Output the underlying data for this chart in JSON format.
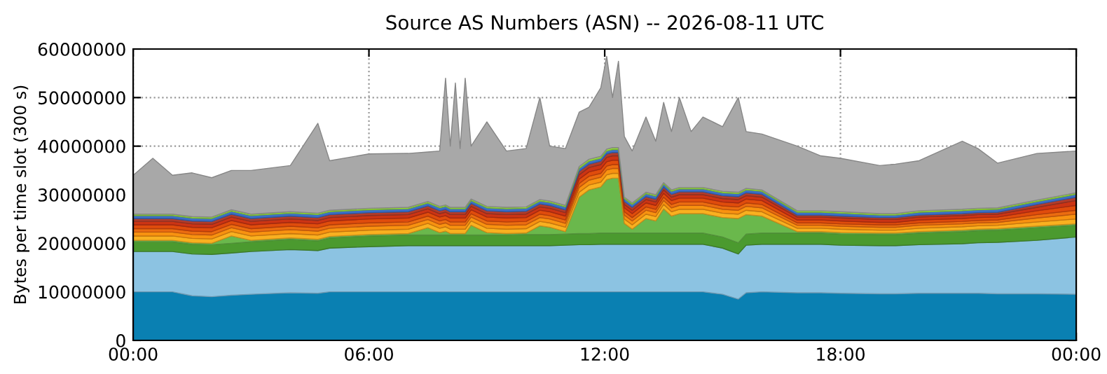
{
  "chart_data": {
    "type": "area",
    "stacked": true,
    "title": "Source AS Numbers (ASN) -- 2026-08-11 UTC",
    "ylabel": "Bytes per time slot (300 s)",
    "x": [
      0,
      0.5,
      1,
      1.5,
      2,
      2.5,
      3,
      4,
      4.7,
      5,
      6,
      7,
      7.5,
      7.8,
      7.95,
      8.07,
      8.2,
      8.32,
      8.45,
      8.6,
      9.0,
      9.5,
      10,
      10.35,
      10.6,
      11,
      11.35,
      11.6,
      11.9,
      12.05,
      12.2,
      12.35,
      12.5,
      12.7,
      13.05,
      13.3,
      13.5,
      13.7,
      13.9,
      14.2,
      14.5,
      15,
      15.4,
      15.6,
      16,
      16.9,
      17.5,
      18,
      19,
      19.4,
      20,
      21.1,
      21.5,
      22,
      23,
      24
    ],
    "xlim": [
      0,
      24
    ],
    "xticks": [
      {
        "value": 0,
        "label": "00:00"
      },
      {
        "value": 6,
        "label": "06:00"
      },
      {
        "value": 12,
        "label": "12:00"
      },
      {
        "value": 18,
        "label": "18:00"
      },
      {
        "value": 24,
        "label": "00:00"
      }
    ],
    "ylim": [
      0,
      60000000
    ],
    "yticks": [
      0,
      10000000,
      20000000,
      30000000,
      40000000,
      50000000,
      60000000
    ],
    "grid": true,
    "series": [
      {
        "color": "#0a80b2",
        "values": [
          10000000,
          10000000,
          10000000,
          9200000,
          9000000,
          9300000,
          9500000,
          9800000,
          9700000,
          10000000,
          10000000,
          10000000,
          10000000,
          10000000,
          10000000,
          10000000,
          10000000,
          10000000,
          10000000,
          10000000,
          10000000,
          10000000,
          10000000,
          10000000,
          10000000,
          10000000,
          10000000,
          10000000,
          10000000,
          10000000,
          10000000,
          10000000,
          10000000,
          10000000,
          10000000,
          10000000,
          10000000,
          10000000,
          10000000,
          10000000,
          10000000,
          9500000,
          8500000,
          9800000,
          10000000,
          9800000,
          9800000,
          9700000,
          9600000,
          9600000,
          9700000,
          9700000,
          9700000,
          9600000,
          9600000,
          9500000
        ]
      },
      {
        "color": "#8cc3e2",
        "values": [
          8300000,
          8300000,
          8300000,
          8600000,
          8700000,
          8700000,
          8800000,
          8900000,
          8800000,
          9000000,
          9300000,
          9500000,
          9500000,
          9500000,
          9500000,
          9500000,
          9500000,
          9500000,
          9500000,
          9500000,
          9500000,
          9500000,
          9500000,
          9500000,
          9500000,
          9600000,
          9700000,
          9700000,
          9800000,
          9800000,
          9800000,
          9800000,
          9800000,
          9800000,
          9800000,
          9800000,
          9800000,
          9800000,
          9800000,
          9800000,
          9800000,
          9500000,
          9300000,
          9800000,
          9800000,
          10000000,
          10000000,
          9900000,
          9900000,
          9900000,
          10000000,
          10200000,
          10400000,
          10600000,
          11000000,
          11800000
        ]
      },
      {
        "color": "#4b9a2f",
        "values": [
          2000000,
          2000000,
          2000000,
          2000000,
          2000000,
          2000000,
          2000000,
          2100000,
          2000000,
          2100000,
          2200000,
          2200000,
          2200000,
          2200000,
          2200000,
          2200000,
          2200000,
          2200000,
          2200000,
          2200000,
          2200000,
          2200000,
          2300000,
          2300000,
          2300000,
          2300000,
          2300000,
          2300000,
          2300000,
          2300000,
          2300000,
          2300000,
          2300000,
          2300000,
          2300000,
          2300000,
          2300000,
          2300000,
          2300000,
          2300000,
          2300000,
          2300000,
          2300000,
          2300000,
          2300000,
          2300000,
          2300000,
          2300000,
          2300000,
          2300000,
          2400000,
          2500000,
          2500000,
          2500000,
          2600000,
          2400000
        ]
      },
      {
        "color": "#6ab84c",
        "values": [
          300000,
          300000,
          300000,
          300000,
          300000,
          1500000,
          300000,
          300000,
          300000,
          300000,
          300000,
          300000,
          1500000,
          500000,
          800000,
          300000,
          300000,
          300000,
          300000,
          2000000,
          500000,
          300000,
          300000,
          1800000,
          1500000,
          500000,
          7500000,
          9000000,
          9500000,
          11000000,
          11300000,
          11300000,
          2000000,
          800000,
          3000000,
          2500000,
          5000000,
          3500000,
          4000000,
          4000000,
          4000000,
          4000000,
          5000000,
          4000000,
          3500000,
          300000,
          300000,
          300000,
          300000,
          300000,
          300000,
          300000,
          300000,
          300000,
          300000,
          300000
        ]
      },
      {
        "color": "#f9b020",
        "values": [
          900000,
          900000,
          900000,
          900000,
          900000,
          900000,
          900000,
          900000,
          900000,
          900000,
          900000,
          900000,
          900000,
          900000,
          900000,
          900000,
          900000,
          900000,
          900000,
          900000,
          900000,
          900000,
          900000,
          900000,
          900000,
          900000,
          1000000,
          1000000,
          1000000,
          1000000,
          1000000,
          1000000,
          900000,
          900000,
          900000,
          900000,
          900000,
          900000,
          900000,
          900000,
          900000,
          900000,
          900000,
          900000,
          900000,
          700000,
          700000,
          700000,
          600000,
          600000,
          700000,
          700000,
          700000,
          700000,
          900000,
          1000000
        ]
      },
      {
        "color": "#f89210",
        "values": [
          800000,
          800000,
          800000,
          800000,
          800000,
          800000,
          800000,
          800000,
          800000,
          800000,
          800000,
          800000,
          800000,
          800000,
          800000,
          800000,
          800000,
          800000,
          800000,
          800000,
          800000,
          800000,
          800000,
          800000,
          800000,
          800000,
          1000000,
          1000000,
          1000000,
          1000000,
          1000000,
          1000000,
          800000,
          800000,
          800000,
          800000,
          800000,
          800000,
          800000,
          800000,
          800000,
          800000,
          800000,
          800000,
          800000,
          600000,
          600000,
          600000,
          600000,
          600000,
          600000,
          600000,
          600000,
          600000,
          800000,
          1000000
        ]
      },
      {
        "color": "#ec6c10",
        "values": [
          700000,
          700000,
          700000,
          700000,
          700000,
          700000,
          700000,
          700000,
          700000,
          700000,
          700000,
          700000,
          700000,
          700000,
          700000,
          700000,
          700000,
          700000,
          700000,
          700000,
          700000,
          700000,
          700000,
          700000,
          700000,
          700000,
          800000,
          800000,
          800000,
          800000,
          800000,
          800000,
          700000,
          700000,
          700000,
          700000,
          700000,
          700000,
          700000,
          700000,
          700000,
          700000,
          700000,
          700000,
          700000,
          500000,
          500000,
          500000,
          500000,
          500000,
          500000,
          500000,
          500000,
          500000,
          700000,
          800000
        ]
      },
      {
        "color": "#e04c0c",
        "values": [
          800000,
          800000,
          800000,
          800000,
          800000,
          800000,
          800000,
          800000,
          800000,
          800000,
          800000,
          800000,
          800000,
          800000,
          800000,
          800000,
          800000,
          800000,
          800000,
          800000,
          800000,
          800000,
          800000,
          800000,
          800000,
          800000,
          900000,
          900000,
          900000,
          900000,
          900000,
          900000,
          800000,
          800000,
          800000,
          800000,
          800000,
          800000,
          800000,
          800000,
          800000,
          800000,
          800000,
          800000,
          800000,
          600000,
          600000,
          600000,
          500000,
          500000,
          600000,
          600000,
          600000,
          600000,
          800000,
          1000000
        ]
      },
      {
        "color": "#cc3414",
        "values": [
          700000,
          700000,
          700000,
          700000,
          700000,
          700000,
          700000,
          700000,
          700000,
          700000,
          700000,
          700000,
          700000,
          700000,
          700000,
          700000,
          700000,
          700000,
          700000,
          700000,
          700000,
          700000,
          700000,
          700000,
          700000,
          700000,
          900000,
          900000,
          900000,
          900000,
          900000,
          900000,
          700000,
          700000,
          700000,
          700000,
          700000,
          700000,
          700000,
          700000,
          700000,
          700000,
          700000,
          700000,
          700000,
          600000,
          600000,
          600000,
          600000,
          600000,
          600000,
          600000,
          600000,
          600000,
          700000,
          1000000
        ]
      },
      {
        "color": "#b23c2a",
        "values": [
          600000,
          600000,
          600000,
          600000,
          600000,
          600000,
          600000,
          600000,
          600000,
          600000,
          600000,
          600000,
          600000,
          600000,
          600000,
          600000,
          600000,
          600000,
          600000,
          600000,
          600000,
          600000,
          600000,
          600000,
          600000,
          600000,
          700000,
          700000,
          700000,
          700000,
          700000,
          700000,
          600000,
          600000,
          600000,
          600000,
          600000,
          600000,
          600000,
          600000,
          600000,
          600000,
          600000,
          600000,
          600000,
          400000,
          400000,
          400000,
          400000,
          400000,
          400000,
          400000,
          400000,
          400000,
          600000,
          700000
        ]
      },
      {
        "color": "#3b6fc8",
        "values": [
          600000,
          600000,
          600000,
          600000,
          600000,
          600000,
          600000,
          600000,
          600000,
          600000,
          600000,
          600000,
          600000,
          600000,
          600000,
          600000,
          600000,
          600000,
          600000,
          600000,
          600000,
          600000,
          600000,
          600000,
          600000,
          600000,
          600000,
          600000,
          600000,
          600000,
          600000,
          600000,
          600000,
          600000,
          600000,
          600000,
          600000,
          600000,
          600000,
          600000,
          600000,
          600000,
          600000,
          600000,
          600000,
          600000,
          600000,
          600000,
          500000,
          500000,
          600000,
          600000,
          600000,
          600000,
          600000,
          600000
        ]
      },
      {
        "color": "#98e040",
        "values": [
          300000,
          300000,
          300000,
          300000,
          300000,
          300000,
          300000,
          300000,
          300000,
          300000,
          300000,
          300000,
          300000,
          300000,
          300000,
          300000,
          300000,
          300000,
          300000,
          300000,
          300000,
          300000,
          300000,
          300000,
          300000,
          300000,
          400000,
          400000,
          400000,
          400000,
          400000,
          400000,
          300000,
          300000,
          300000,
          300000,
          300000,
          300000,
          300000,
          300000,
          300000,
          300000,
          300000,
          300000,
          300000,
          300000,
          300000,
          300000,
          300000,
          300000,
          300000,
          300000,
          300000,
          300000,
          300000,
          300000
        ]
      },
      {
        "color": "#a8a8a8",
        "values": [
          8000000,
          11500000,
          8000000,
          9000000,
          8100000,
          8100000,
          9000000,
          9500000,
          18500000,
          10200000,
          11200000,
          11100000,
          10200000,
          11400000,
          26100000,
          12600000,
          25600000,
          12100000,
          26600000,
          10900000,
          17400000,
          11600000,
          12000000,
          21000000,
          11300000,
          11700000,
          11200000,
          10700000,
          14100000,
          19100000,
          10300000,
          17800000,
          12500000,
          10700000,
          15500000,
          11000000,
          16500000,
          12000000,
          18500000,
          11500000,
          14500000,
          13300000,
          19500000,
          11700000,
          11500000,
          13300000,
          11300000,
          11000000,
          9900000,
          10200000,
          10300000,
          14000000,
          12300000,
          9200000,
          9600000,
          8600000
        ]
      }
    ]
  }
}
